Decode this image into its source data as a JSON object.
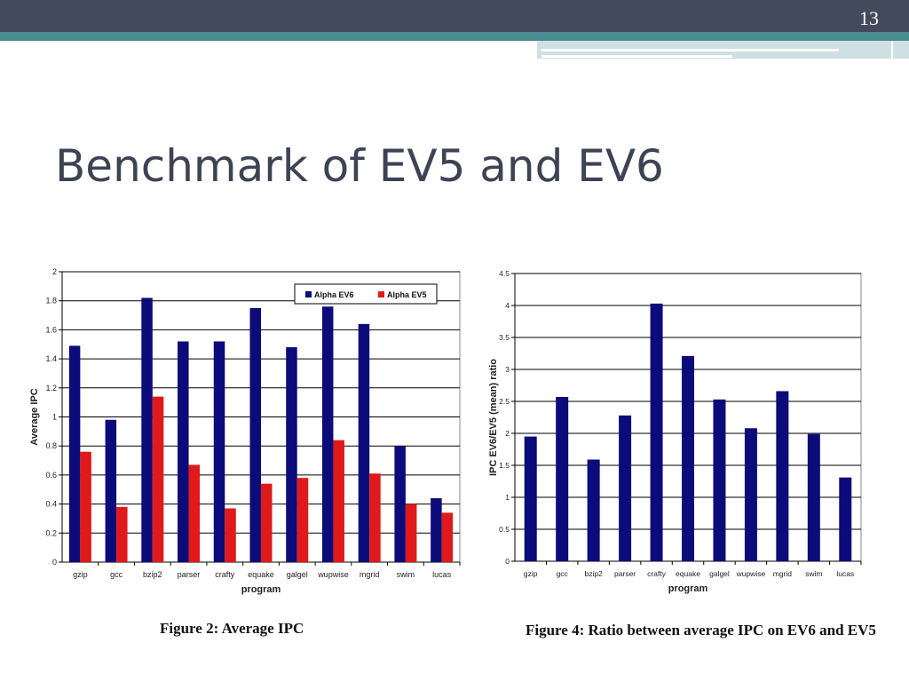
{
  "slide": {
    "number": "13",
    "title": "Benchmark of EV5 and EV6",
    "colors": {
      "topbar": "#434a5c",
      "teal": "#4b8d92",
      "ev6": "#0b0b7a",
      "ev5": "#e01a1a"
    }
  },
  "chart_data": [
    {
      "type": "bar",
      "categories": [
        "gzip",
        "gcc",
        "bzip2",
        "parser",
        "crafty",
        "equake",
        "galgel",
        "wupwise",
        "mgrid",
        "swim",
        "lucas"
      ],
      "series": [
        {
          "name": "Alpha EV6",
          "values": [
            1.49,
            0.98,
            1.82,
            1.52,
            1.52,
            1.75,
            1.48,
            1.76,
            1.64,
            0.8,
            0.44
          ]
        },
        {
          "name": "Alpha EV5",
          "values": [
            0.76,
            0.38,
            1.14,
            0.67,
            0.37,
            0.54,
            0.58,
            0.84,
            0.61,
            0.4,
            0.34
          ]
        }
      ],
      "ylim": [
        0,
        2
      ],
      "yticks": [
        "0",
        "0.2",
        "0.4",
        "0.6",
        "0.8",
        "1",
        "1.2",
        "1.4",
        "1.6",
        "1.8",
        "2"
      ],
      "xlabel": "program",
      "ylabel": "Average IPC",
      "legend": "top-right",
      "grid": true,
      "caption": "Figure 2: Average IPC"
    },
    {
      "type": "bar",
      "categories": [
        "gzip",
        "gcc",
        "bzip2",
        "parser",
        "crafty",
        "equake",
        "galgel",
        "wupwise",
        "mgrid",
        "swim",
        "lucas"
      ],
      "series": [
        {
          "values": [
            1.95,
            2.57,
            1.59,
            2.28,
            4.03,
            3.21,
            2.53,
            2.08,
            2.66,
            1.99,
            1.31
          ]
        }
      ],
      "ylim": [
        0,
        4.5
      ],
      "yticks": [
        "0",
        "0.5",
        "1",
        "1.5",
        "2",
        "2.5",
        "3",
        "3.5",
        "4",
        "4.5"
      ],
      "xlabel": "program",
      "ylabel": "IPC EV6/EV5 (mean) ratio",
      "grid": true,
      "caption": "Figure 4: Ratio between average IPC on EV6 and EV5"
    }
  ]
}
